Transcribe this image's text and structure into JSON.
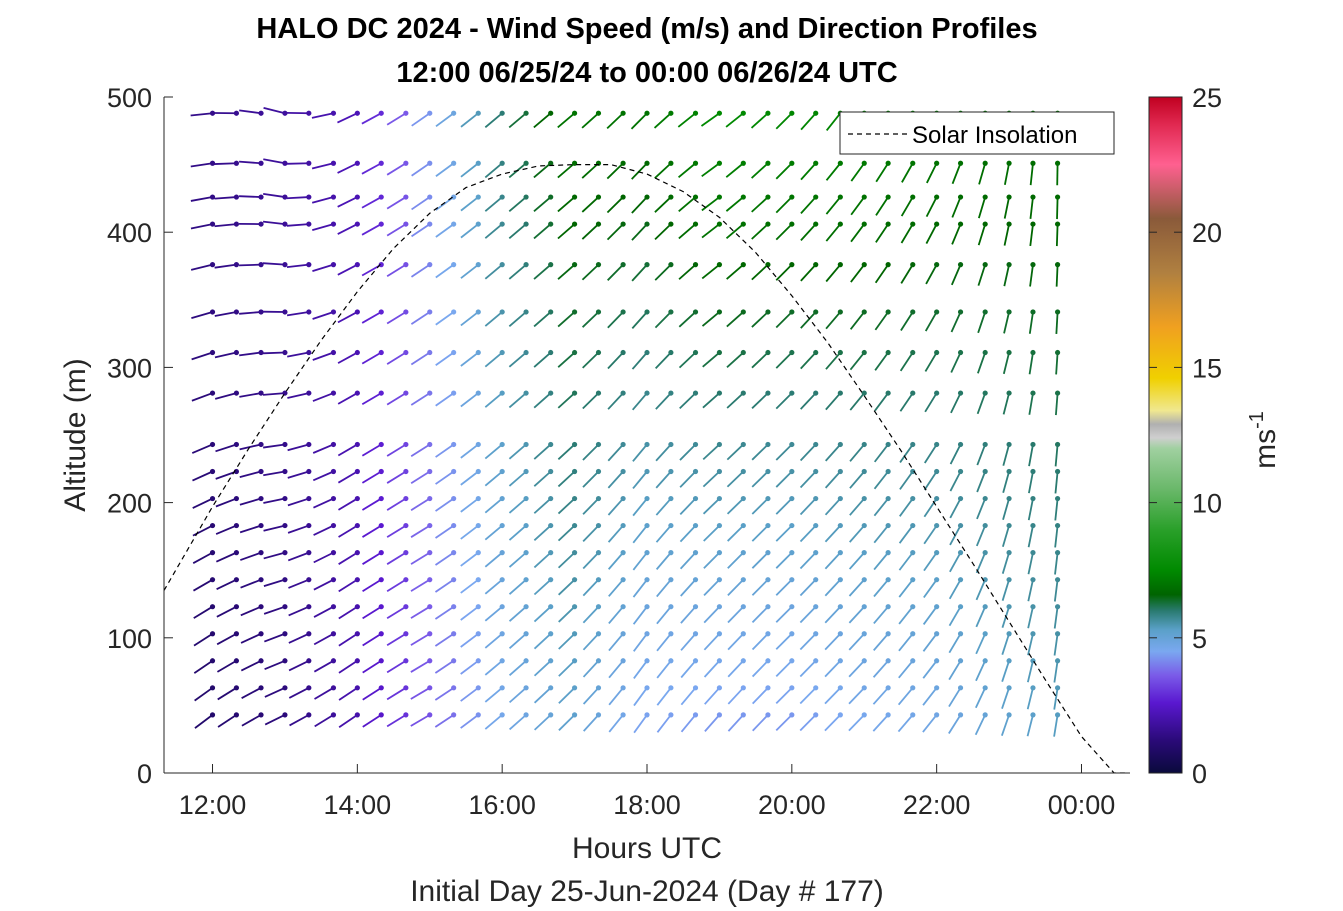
{
  "chart_data": {
    "type": "wind-barb-profile",
    "title": "HALO DC 2024 - Wind Speed (m/s) and Direction Profiles",
    "subtitle": "12:00 06/25/24 to 00:00 06/26/24  UTC",
    "xlabel": "Hours UTC",
    "xsublabel": "Initial Day 25-Jun-2024 (Day # 177)",
    "ylabel": "Altitude (m)",
    "xlim_hours": [
      11.33,
      24.67
    ],
    "ylim": [
      0,
      500
    ],
    "x_ticks": [
      {
        "hour": 12,
        "label": "12:00"
      },
      {
        "hour": 14,
        "label": "14:00"
      },
      {
        "hour": 16,
        "label": "16:00"
      },
      {
        "hour": 18,
        "label": "18:00"
      },
      {
        "hour": 20,
        "label": "20:00"
      },
      {
        "hour": 22,
        "label": "22:00"
      },
      {
        "hour": 24,
        "label": "00:00"
      }
    ],
    "y_ticks": [
      0,
      100,
      200,
      300,
      400,
      500
    ],
    "colorbar": {
      "label_base": "ms",
      "label_exp": "-1",
      "range": [
        0,
        25
      ],
      "ticks": [
        0,
        5,
        10,
        15,
        20,
        25
      ],
      "stops": [
        {
          "v": 0,
          "c": "#0a0a3c"
        },
        {
          "v": 1.2,
          "c": "#2a0a78"
        },
        {
          "v": 2.6,
          "c": "#5a18d0"
        },
        {
          "v": 3.6,
          "c": "#7a5ae8"
        },
        {
          "v": 4.5,
          "c": "#7aa8f0"
        },
        {
          "v": 5.3,
          "c": "#5aa0c8"
        },
        {
          "v": 6.0,
          "c": "#2a7a70"
        },
        {
          "v": 6.6,
          "c": "#006400"
        },
        {
          "v": 7.5,
          "c": "#008a00"
        },
        {
          "v": 9.0,
          "c": "#2aa02a"
        },
        {
          "v": 10.5,
          "c": "#6ab86a"
        },
        {
          "v": 12.0,
          "c": "#a0d0a0"
        },
        {
          "v": 12.4,
          "c": "#cfcfcf"
        },
        {
          "v": 12.9,
          "c": "#b0b0b0"
        },
        {
          "v": 13.4,
          "c": "#f0e890"
        },
        {
          "v": 14.6,
          "c": "#f0d000"
        },
        {
          "v": 16.5,
          "c": "#f0a020"
        },
        {
          "v": 18.5,
          "c": "#b08040"
        },
        {
          "v": 20.5,
          "c": "#8a5a3a"
        },
        {
          "v": 22.5,
          "c": "#ff6090"
        },
        {
          "v": 24.0,
          "c": "#e02850"
        },
        {
          "v": 25.0,
          "c": "#c00020"
        }
      ]
    },
    "legend": {
      "label": "Solar Insolation",
      "position": "top-right"
    },
    "solar_insolation": {
      "x": [
        11.33,
        12.0,
        12.5,
        13.0,
        13.5,
        14.0,
        14.5,
        15.0,
        15.5,
        16.0,
        16.5,
        17.0,
        17.5,
        18.0,
        18.5,
        19.0,
        19.5,
        20.0,
        20.5,
        21.0,
        21.5,
        22.0,
        22.5,
        23.0,
        23.5,
        24.0,
        24.45,
        24.6
      ],
      "y": [
        135,
        197,
        240,
        281,
        320,
        356,
        388,
        414,
        433,
        443,
        449,
        450,
        450,
        443,
        430,
        411,
        385,
        353,
        318,
        279,
        239,
        197,
        155,
        112,
        69,
        27,
        0,
        0
      ]
    },
    "altitudes": [
      43,
      63,
      83,
      103,
      123,
      143,
      163,
      183,
      203,
      223,
      243,
      281,
      311,
      341,
      376,
      406,
      426,
      451,
      488
    ],
    "time_start_hour": 12.0,
    "time_step_hour": 0.333,
    "hour_offsets": [
      12.0,
      12.33,
      12.67,
      13.0,
      13.33,
      13.67,
      14.0,
      14.33,
      14.67,
      15.0,
      15.33,
      15.67,
      16.0,
      16.33,
      16.67,
      17.0,
      17.33,
      17.67,
      18.0,
      18.33,
      18.67,
      19.0,
      19.33,
      19.67,
      20.0,
      20.33,
      20.67,
      21.0,
      21.33,
      21.67,
      22.0,
      22.33,
      22.67,
      23.0,
      23.33,
      23.67
    ],
    "wind_profile_by_hour": [
      {
        "hour": 12.0,
        "speed_low": 0.9,
        "speed_high": 1.5,
        "dir_low": 230,
        "dir_high": 265
      },
      {
        "hour": 13.0,
        "speed_low": 1.2,
        "speed_high": 1.8,
        "dir_low": 240,
        "dir_high": 285
      },
      {
        "hour": 14.0,
        "speed_low": 2.0,
        "speed_high": 2.2,
        "dir_low": 235,
        "dir_high": 245
      },
      {
        "hour": 15.0,
        "speed_low": 3.4,
        "speed_high": 4.3,
        "dir_low": 240,
        "dir_high": 235
      },
      {
        "hour": 16.0,
        "speed_low": 4.5,
        "speed_high": 6.0,
        "dir_low": 230,
        "dir_high": 230
      },
      {
        "hour": 17.0,
        "speed_low": 5.0,
        "speed_high": 7.0,
        "dir_low": 225,
        "dir_high": 230
      },
      {
        "hour": 18.0,
        "speed_low": 4.2,
        "speed_high": 7.0,
        "dir_low": 215,
        "dir_high": 225
      },
      {
        "hour": 19.0,
        "speed_low": 4.0,
        "speed_high": 7.6,
        "dir_low": 220,
        "dir_high": 235
      },
      {
        "hour": 20.0,
        "speed_low": 4.0,
        "speed_high": 7.5,
        "dir_low": 225,
        "dir_high": 225
      },
      {
        "hour": 21.0,
        "speed_low": 4.3,
        "speed_high": 7.4,
        "dir_low": 225,
        "dir_high": 215
      },
      {
        "hour": 22.0,
        "speed_low": 4.5,
        "speed_high": 7.2,
        "dir_low": 220,
        "dir_high": 205
      },
      {
        "hour": 23.0,
        "speed_low": 5.0,
        "speed_high": 7.0,
        "dir_low": 200,
        "dir_high": 190
      },
      {
        "hour": 23.67,
        "speed_low": 5.2,
        "speed_high": 7.0,
        "dir_low": 190,
        "dir_high": 180
      }
    ],
    "wind_top_altitude": 500
  }
}
